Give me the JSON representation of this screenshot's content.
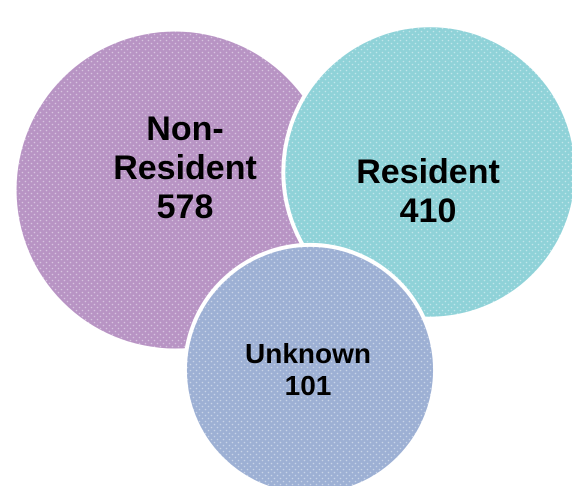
{
  "chart_data": {
    "type": "bubble",
    "categories": [
      "Non-Resident",
      "Resident",
      "Unknown"
    ],
    "values": [
      578,
      410,
      101
    ],
    "colors": [
      "#b894c4",
      "#8fd2d8",
      "#9db0d4"
    ]
  }
}
